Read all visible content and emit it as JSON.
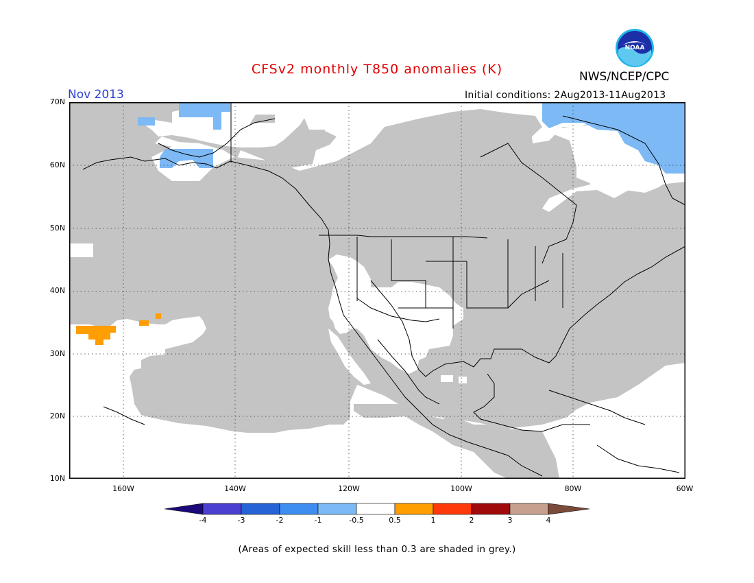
{
  "title": "CFSv2 monthly T850 anomalies (K)",
  "agency": "NWS/NCEP/CPC",
  "logo_text": "NOAA",
  "valid_month": "Nov 2013",
  "initial_conditions": "Initial conditions: 2Aug2013-11Aug2013",
  "lat_labels": [
    "70N",
    "60N",
    "50N",
    "40N",
    "30N",
    "20N",
    "10N"
  ],
  "lon_labels": [
    "160W",
    "140W",
    "120W",
    "100W",
    "80W",
    "60W"
  ],
  "colorbar": {
    "labels": [
      "-4",
      "-3",
      "-2",
      "-1",
      "-0.5",
      "0.5",
      "1",
      "2",
      "3",
      "4"
    ],
    "colors": [
      "#1c0a7a",
      "#4a3fd0",
      "#2563d6",
      "#3d8ef0",
      "#7db9f5",
      "#ffffff",
      "#ff9e00",
      "#ff3a0a",
      "#a00a0a",
      "#c8a090",
      "#7a4a3a"
    ]
  },
  "colors": {
    "low_skill_grey": "#c4c4c4",
    "cool_light_blue": "#7db9f5",
    "warm_orange": "#ff9e00",
    "title_red": "#e00000",
    "month_blue": "#2b3fd6"
  },
  "footnote": "(Areas of expected skill less than 0.3 are shaded in grey.)"
}
